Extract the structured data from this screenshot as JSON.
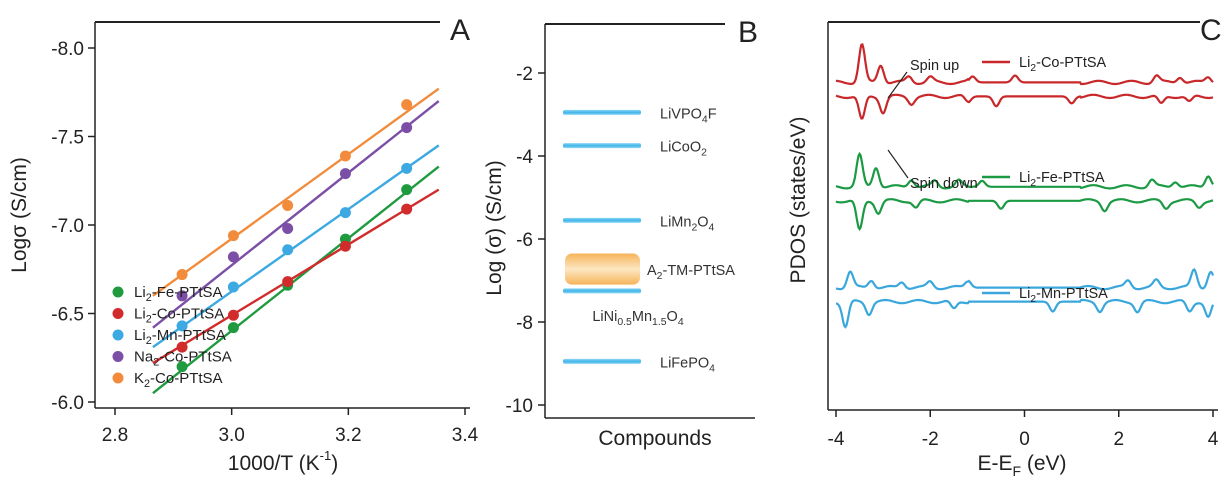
{
  "panels": {
    "a": {
      "letter": "A"
    },
    "b": {
      "letter": "B"
    },
    "c": {
      "letter": "C"
    }
  },
  "chart_data": [
    {
      "type": "scatter",
      "xlabel": "1000/T (K⁻¹)",
      "xlabel_main": "1000/T (K",
      "xlabel_sup": "-1",
      "xlabel_tail": ")",
      "ylabel": "Logσ (S/cm)",
      "xlim": [
        2.8,
        3.4
      ],
      "ylim": [
        -8.0,
        -6.0
      ],
      "x_ticks": [
        "2.8",
        "3.0",
        "3.2",
        "3.4"
      ],
      "y_ticks": [
        "-6.0",
        "-6.5",
        "-7.0",
        "-7.5",
        "-8.0"
      ],
      "x": [
        2.915,
        3.003,
        3.096,
        3.195,
        3.3
      ],
      "fit_x_range": [
        2.865,
        3.355
      ],
      "legend_position": "bottom-left",
      "series": [
        {
          "name": "Li2-Fe-PTtSA",
          "name_parts": [
            "Li",
            "2",
            "-Fe-PTtSA"
          ],
          "color": "#1f9a3f",
          "values": [
            -6.2,
            -6.42,
            -6.66,
            -6.92,
            -7.2
          ],
          "fit": [
            -6.05,
            -7.33
          ]
        },
        {
          "name": "Li2-Co-PTtSA",
          "name_parts": [
            "Li",
            "2",
            "-Co-PTtSA"
          ],
          "color": "#d22b2b",
          "values": [
            -6.31,
            -6.49,
            -6.68,
            -6.88,
            -7.09
          ],
          "fit": [
            -6.22,
            -7.2
          ]
        },
        {
          "name": "Li2-Mn-PTtSA",
          "name_parts": [
            "Li",
            "2",
            "-Mn-PTtSA"
          ],
          "color": "#3ca9e2",
          "values": [
            -6.43,
            -6.65,
            -6.86,
            -7.07,
            -7.32
          ],
          "fit": [
            -6.31,
            -7.45
          ]
        },
        {
          "name": "Na2-Co-PTtSA",
          "name_parts": [
            "Na",
            "2",
            "-Co-PTtSA"
          ],
          "color": "#7b4fa6",
          "values": [
            -6.6,
            -6.82,
            -6.98,
            -7.29,
            -7.55
          ],
          "fit": [
            -6.42,
            -7.7
          ]
        },
        {
          "name": "K2-Co-PTtSA",
          "name_parts": [
            "K",
            "2",
            "-Co-PTtSA"
          ],
          "color": "#f28c3c",
          "values": [
            -6.72,
            -6.94,
            -7.11,
            -7.39,
            -7.68
          ],
          "fit": [
            -6.6,
            -7.77
          ]
        }
      ]
    },
    {
      "type": "bar",
      "xlabel": "Compounds",
      "ylabel": "Log (σ) (S/cm)",
      "ylim": [
        -10.2,
        -1.0
      ],
      "y_ticks": [
        "-2",
        "-4",
        "-6",
        "-8",
        "-10"
      ],
      "entries": [
        {
          "label": "LiVPO4F",
          "parts": [
            "LiVPO",
            "4",
            "F"
          ],
          "value": -2.95
        },
        {
          "label": "LiCoO2",
          "parts": [
            "LiCoO",
            "2",
            ""
          ],
          "value": -3.75
        },
        {
          "label": "LiMn2O4",
          "parts": [
            "LiMn",
            "2",
            "O",
            "4"
          ],
          "value": -5.55
        },
        {
          "label": "LiNi0.5Mn1.5O4",
          "parts": [
            "LiNi",
            "0.5",
            "Mn",
            "1.5",
            "O",
            "4"
          ],
          "value": -7.25
        },
        {
          "label": "LiFePO4",
          "parts": [
            "LiFePO",
            "4",
            ""
          ],
          "value": -8.95
        }
      ],
      "band": {
        "label": "A2-TM-PTtSA",
        "parts": [
          "A",
          "2",
          "-TM-PTtSA"
        ],
        "range": [
          -6.35,
          -7.1
        ]
      },
      "colors": {
        "line": "#3fb5e8",
        "band_edge": "#f6b45a",
        "band_center": "#fde7c2"
      }
    },
    {
      "type": "line",
      "xlabel": "E-EF (eV)",
      "xlabel_main": "E-E",
      "xlabel_sub": "F",
      "xlabel_tail": " (eV)",
      "ylabel": "PDOS (states/eV)",
      "xlim": [
        -4,
        4
      ],
      "x_ticks": [
        "-4",
        "-2",
        "0",
        "2",
        "4"
      ],
      "annotations": {
        "spin_up": "Spin up",
        "spin_down": "Spin down"
      },
      "series": [
        {
          "name": "Li2-Co-PTtSA",
          "name_parts": [
            "Li",
            "2",
            "-Co-PTtSA"
          ],
          "color": "#c8282a",
          "baseline": 2.9,
          "up_peaks": [
            [
              -3.45,
              1.9
            ],
            [
              -3.05,
              0.9
            ],
            [
              -2.45,
              0.3
            ],
            [
              -2.0,
              0.25
            ],
            [
              -1.1,
              0.3
            ],
            [
              -0.2,
              0.35
            ],
            [
              2.8,
              0.35
            ],
            [
              3.3,
              0.3
            ],
            [
              3.9,
              0.3
            ]
          ],
          "down_peaks": [
            [
              -3.45,
              -1.2
            ],
            [
              -3.0,
              -0.8
            ],
            [
              -2.4,
              -0.35
            ],
            [
              -1.2,
              -0.3
            ],
            [
              -0.6,
              -0.5
            ],
            [
              1.0,
              -0.35
            ],
            [
              2.9,
              -0.4
            ],
            [
              3.5,
              -0.3
            ]
          ]
        },
        {
          "name": "Li2-Fe-PTtSA",
          "name_parts": [
            "Li",
            "2",
            "-Fe-PTtSA"
          ],
          "color": "#1c9a43",
          "baseline": 5.8,
          "up_peaks": [
            [
              -3.5,
              1.6
            ],
            [
              -3.15,
              1.0
            ],
            [
              -2.4,
              0.4
            ],
            [
              -1.9,
              0.3
            ],
            [
              -1.4,
              0.3
            ],
            [
              -0.9,
              0.3
            ],
            [
              2.7,
              0.35
            ],
            [
              3.2,
              0.3
            ],
            [
              3.9,
              0.6
            ]
          ],
          "down_peaks": [
            [
              -3.5,
              -1.5
            ],
            [
              -3.1,
              -0.6
            ],
            [
              -2.3,
              -0.35
            ],
            [
              -0.5,
              -0.4
            ],
            [
              1.7,
              -0.45
            ],
            [
              3.0,
              -0.35
            ],
            [
              3.7,
              -0.3
            ]
          ]
        },
        {
          "name": "Li2-Mn-PTtSA",
          "name_parts": [
            "Li",
            "2",
            "-Mn-PTtSA"
          ],
          "color": "#3aa7dc",
          "baseline": 8.6,
          "up_peaks": [
            [
              -3.7,
              0.8
            ],
            [
              -3.25,
              0.4
            ],
            [
              -2.6,
              0.3
            ],
            [
              -2.0,
              0.3
            ],
            [
              -1.2,
              0.35
            ],
            [
              2.2,
              0.35
            ],
            [
              2.8,
              0.35
            ],
            [
              3.6,
              0.9
            ],
            [
              3.95,
              0.8
            ]
          ],
          "down_peaks": [
            [
              -3.8,
              -1.3
            ],
            [
              -3.3,
              -0.6
            ],
            [
              -1.5,
              -0.4
            ],
            [
              0.6,
              -0.5
            ],
            [
              1.6,
              -0.45
            ],
            [
              2.4,
              -0.5
            ],
            [
              3.5,
              -0.5
            ],
            [
              3.9,
              -0.8
            ]
          ]
        }
      ]
    }
  ]
}
